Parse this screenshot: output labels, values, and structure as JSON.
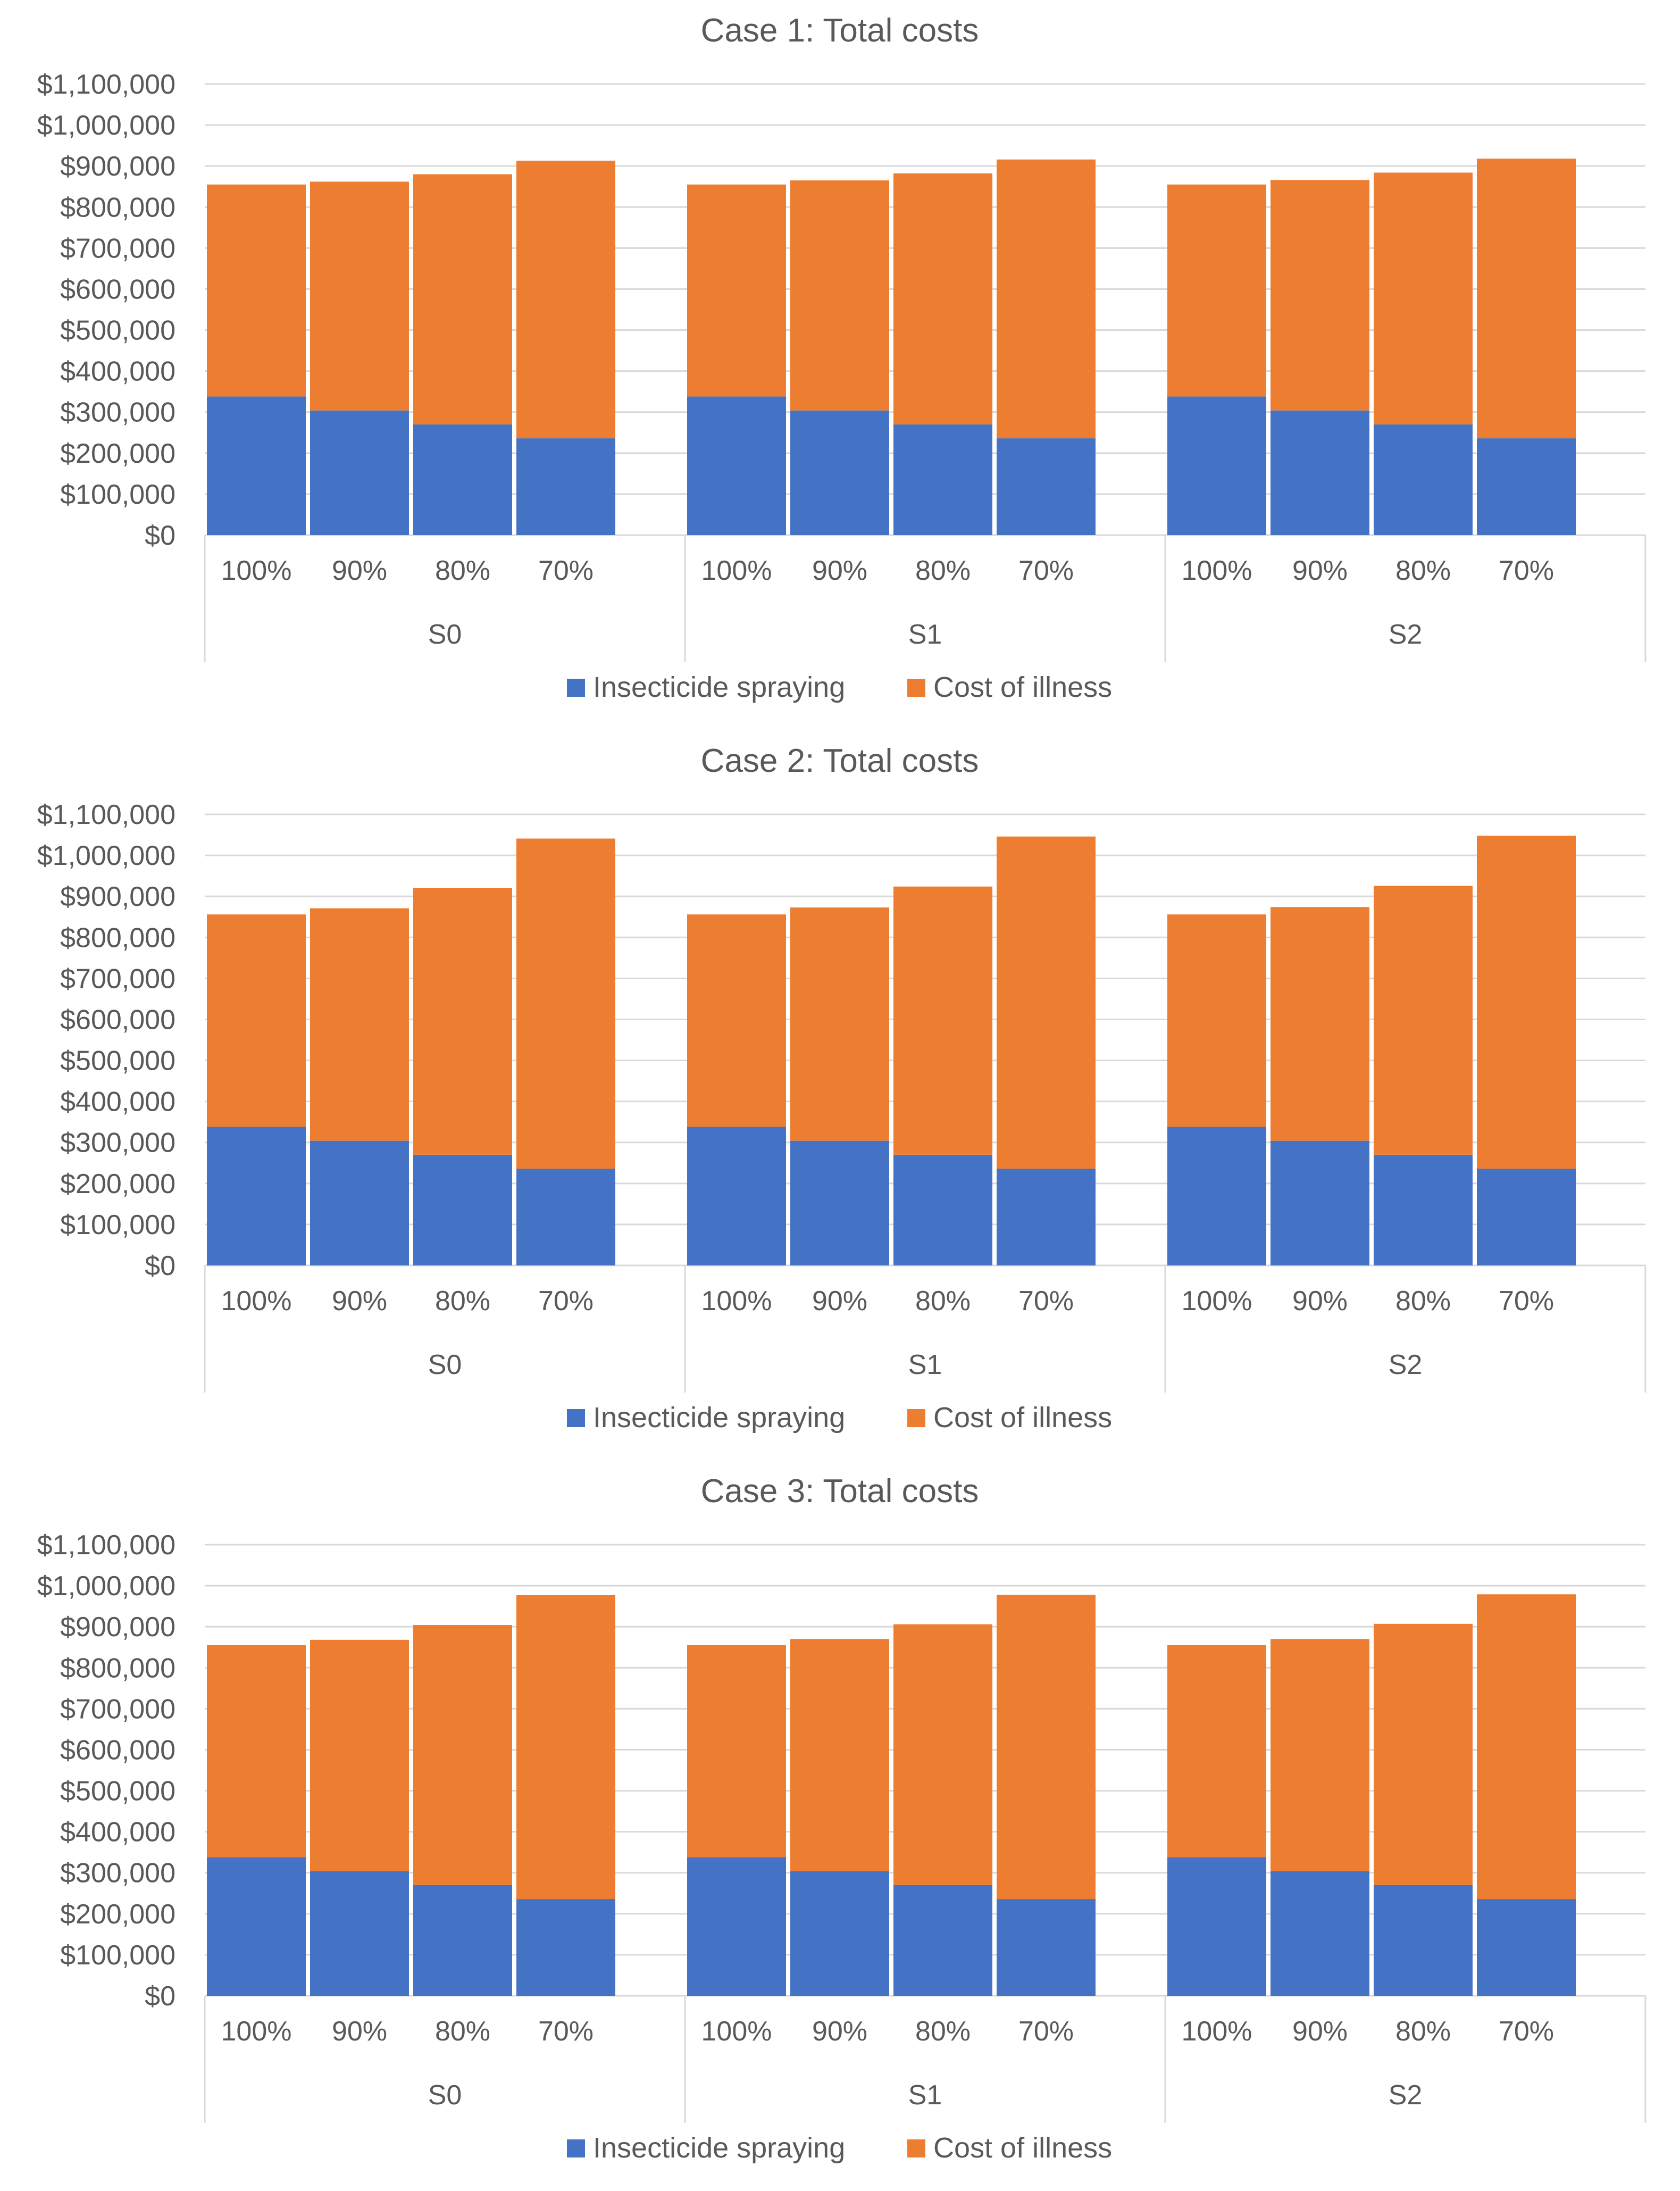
{
  "chart_data": [
    {
      "type": "bar",
      "stacked": true,
      "title": "Case 1: Total costs",
      "groups": [
        "S0",
        "S1",
        "S2"
      ],
      "categories": [
        "100%",
        "90%",
        "80%",
        "70%"
      ],
      "ylim": [
        0,
        1100000
      ],
      "yticks": [
        "$0",
        "$100,000",
        "$200,000",
        "$300,000",
        "$400,000",
        "$500,000",
        "$600,000",
        "$700,000",
        "$800,000",
        "$900,000",
        "$1,000,000",
        "$1,100,000"
      ],
      "grid": true,
      "legend": "bottom",
      "series": [
        {
          "name": "Insecticide spraying",
          "color": "#4472c4",
          "values": [
            [
              338000,
              304000,
              270000,
              236000
            ],
            [
              338000,
              304000,
              270000,
              236000
            ],
            [
              338000,
              304000,
              270000,
              236000
            ]
          ]
        },
        {
          "name": "Cost of illness",
          "color": "#ed7d31",
          "values": [
            [
              517000,
              558000,
              610000,
              677000
            ],
            [
              517000,
              561000,
              612000,
              680000
            ],
            [
              517000,
              562000,
              614000,
              682000
            ]
          ]
        }
      ]
    },
    {
      "type": "bar",
      "stacked": true,
      "title": "Case 2: Total costs",
      "groups": [
        "S0",
        "S1",
        "S2"
      ],
      "categories": [
        "100%",
        "90%",
        "80%",
        "70%"
      ],
      "ylim": [
        0,
        1100000
      ],
      "yticks": [
        "$0",
        "$100,000",
        "$200,000",
        "$300,000",
        "$400,000",
        "$500,000",
        "$600,000",
        "$700,000",
        "$800,000",
        "$900,000",
        "$1,000,000",
        "$1,100,000"
      ],
      "grid": true,
      "legend": "bottom",
      "series": [
        {
          "name": "Insecticide spraying",
          "color": "#4472c4",
          "values": [
            [
              338000,
              304000,
              270000,
              236000
            ],
            [
              338000,
              304000,
              270000,
              236000
            ],
            [
              338000,
              304000,
              270000,
              236000
            ]
          ]
        },
        {
          "name": "Cost of illness",
          "color": "#ed7d31",
          "values": [
            [
              518000,
              567000,
              651000,
              805000
            ],
            [
              518000,
              569000,
              654000,
              810000
            ],
            [
              518000,
              570000,
              656000,
              812000
            ]
          ]
        }
      ]
    },
    {
      "type": "bar",
      "stacked": true,
      "title": "Case 3: Total costs",
      "groups": [
        "S0",
        "S1",
        "S2"
      ],
      "categories": [
        "100%",
        "90%",
        "80%",
        "70%"
      ],
      "ylim": [
        0,
        1100000
      ],
      "yticks": [
        "$0",
        "$100,000",
        "$200,000",
        "$300,000",
        "$400,000",
        "$500,000",
        "$600,000",
        "$700,000",
        "$800,000",
        "$900,000",
        "$1,000,000",
        "$1,100,000"
      ],
      "grid": true,
      "legend": "bottom",
      "series": [
        {
          "name": "Insecticide spraying",
          "color": "#4472c4",
          "values": [
            [
              338000,
              304000,
              270000,
              236000
            ],
            [
              338000,
              304000,
              270000,
              236000
            ],
            [
              338000,
              304000,
              270000,
              236000
            ]
          ]
        },
        {
          "name": "Cost of illness",
          "color": "#ed7d31",
          "values": [
            [
              517000,
              564000,
              634000,
              741000
            ],
            [
              517000,
              566000,
              636000,
              742000
            ],
            [
              517000,
              566000,
              637000,
              743000
            ]
          ]
        }
      ]
    }
  ]
}
